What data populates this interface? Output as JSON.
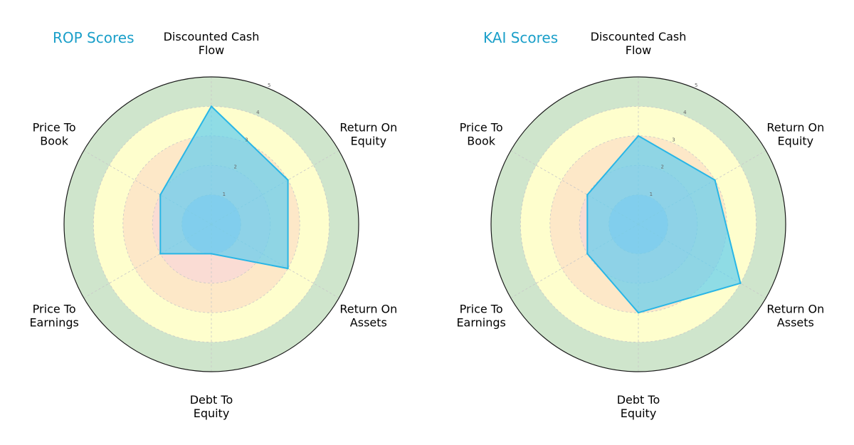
{
  "chart_data": [
    {
      "type": "radar",
      "title": "ROP Scores",
      "axes": [
        [
          "Discounted Cash",
          "Flow"
        ],
        [
          "Return On",
          "Equity"
        ],
        [
          "Return On",
          "Assets"
        ],
        [
          "Debt To",
          "Equity"
        ],
        [
          "Price To",
          "Earnings"
        ],
        [
          "Price To",
          "Book"
        ]
      ],
      "values": [
        4,
        3,
        3,
        1,
        2,
        2
      ],
      "rlim": [
        0,
        5
      ],
      "ticks": [
        "1",
        "2",
        "3",
        "4",
        "5"
      ]
    },
    {
      "type": "radar",
      "title": "KAI Scores",
      "axes": [
        [
          "Discounted Cash",
          "Flow"
        ],
        [
          "Return On",
          "Equity"
        ],
        [
          "Return On",
          "Assets"
        ],
        [
          "Debt To",
          "Equity"
        ],
        [
          "Price To",
          "Earnings"
        ],
        [
          "Price To",
          "Book"
        ]
      ],
      "values": [
        3,
        3,
        4,
        3,
        2,
        2
      ],
      "rlim": [
        0,
        5
      ],
      "ticks": [
        "1",
        "2",
        "3",
        "4",
        "5"
      ]
    }
  ],
  "colors": {
    "title": "#1a9fc9",
    "series_line": "#29b6e6",
    "series_fill": "#5fcdf0",
    "band_5": "#cfe5cc",
    "band_4": "#fefecd",
    "band_3": "#fde8c8",
    "band_2": "#fadcd4",
    "band_1": "#cfcfe6"
  }
}
